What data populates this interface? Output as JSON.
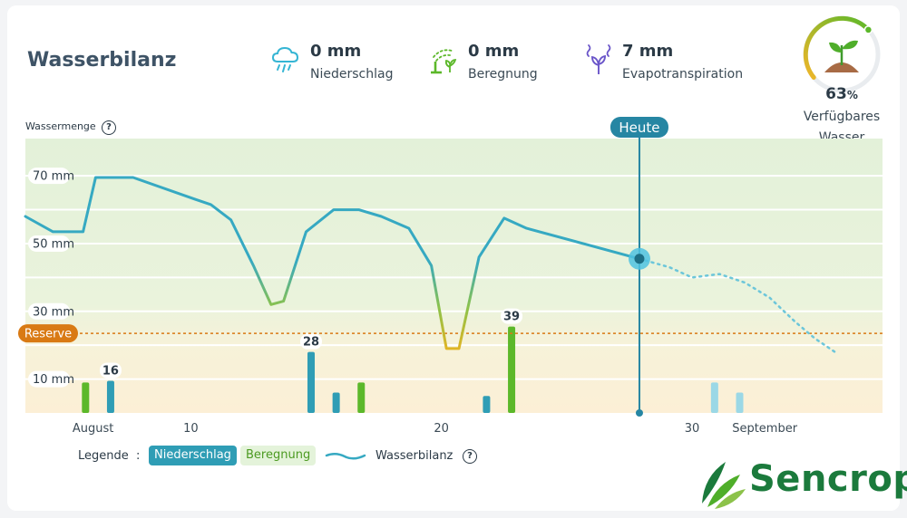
{
  "header": {
    "title": "Wasserbilanz",
    "stats": [
      {
        "icon": "rain-cloud-icon",
        "value": "0 mm",
        "label": "Niederschlag",
        "color": "#35b5d4"
      },
      {
        "icon": "sprinkler-icon",
        "value": "0 mm",
        "label": "Beregnung",
        "color": "#5cb82a"
      },
      {
        "icon": "evapotranspiration-icon",
        "value": "7 mm",
        "label": "Evapotranspiration",
        "color": "#6a55c9"
      }
    ]
  },
  "gauge": {
    "icon": "sprout-icon",
    "percent_value": 63,
    "percent_number": "63",
    "percent_sign": "%",
    "label": "Verfügbares Wasser"
  },
  "chart_data": {
    "type": "line",
    "y_title": "Wassermenge",
    "ylim": [
      0,
      81
    ],
    "y_ticks": [
      {
        "value": 70,
        "label": "70 mm"
      },
      {
        "value": 50,
        "label": "50 mm"
      },
      {
        "value": 30,
        "label": "30 mm"
      },
      {
        "value": 10,
        "label": "10 mm"
      }
    ],
    "gridlines": [
      10,
      20,
      30,
      40,
      50,
      60,
      70
    ],
    "x_day_range": [
      0,
      34.2
    ],
    "x_ticks": [
      {
        "day": 2.7,
        "label": "August"
      },
      {
        "day": 6.6,
        "label": "10"
      },
      {
        "day": 16.6,
        "label": "20"
      },
      {
        "day": 26.6,
        "label": "30"
      },
      {
        "day": 29.5,
        "label": "September"
      }
    ],
    "reserve": {
      "label": "Reserve",
      "value": 23.5
    },
    "today": {
      "label": "Heute",
      "day": 24.5,
      "value": 45.5
    },
    "series": [
      {
        "name": "Wasserbilanz",
        "style": "solid",
        "points": [
          [
            0,
            58
          ],
          [
            1.1,
            53.5
          ],
          [
            2.3,
            53.5
          ],
          [
            2.8,
            69.5
          ],
          [
            4.3,
            69.5
          ],
          [
            6.8,
            63
          ],
          [
            7.4,
            61.5
          ],
          [
            8.2,
            57
          ],
          [
            9.1,
            43.5
          ],
          [
            9.8,
            32
          ],
          [
            10.3,
            33
          ],
          [
            11.2,
            53.5
          ],
          [
            12.3,
            60
          ],
          [
            13.3,
            60
          ],
          [
            14.2,
            58
          ],
          [
            15.3,
            54.5
          ],
          [
            16.2,
            43.5
          ],
          [
            16.8,
            19
          ],
          [
            17.3,
            19
          ],
          [
            18.1,
            46
          ],
          [
            19.1,
            57.5
          ],
          [
            20,
            54.5
          ],
          [
            24.5,
            45.5
          ]
        ]
      },
      {
        "name": "Forecast",
        "style": "dotted",
        "points": [
          [
            24.5,
            45.5
          ],
          [
            25.7,
            43
          ],
          [
            26.6,
            40
          ],
          [
            27.7,
            41
          ],
          [
            28.7,
            38.5
          ],
          [
            29.7,
            34
          ],
          [
            30.7,
            27
          ],
          [
            31.5,
            22
          ],
          [
            32.4,
            17.5
          ]
        ]
      }
    ],
    "bars": [
      {
        "day": 2.4,
        "value": 9,
        "kind": "Beregnung"
      },
      {
        "day": 3.4,
        "value": 9.5,
        "kind": "Niederschlag",
        "label": "16"
      },
      {
        "day": 11.4,
        "value": 18,
        "kind": "Niederschlag",
        "label": "28"
      },
      {
        "day": 12.4,
        "value": 6,
        "kind": "Niederschlag"
      },
      {
        "day": 13.4,
        "value": 9,
        "kind": "Beregnung"
      },
      {
        "day": 18.4,
        "value": 5,
        "kind": "Niederschlag"
      },
      {
        "day": 19.4,
        "value": 25.5,
        "kind": "Beregnung",
        "label": "39"
      },
      {
        "day": 27.5,
        "value": 9,
        "kind": "Prognose"
      },
      {
        "day": 28.5,
        "value": 6,
        "kind": "Prognose"
      }
    ],
    "colors": {
      "line": "#36a9c2",
      "line_low": "#8cc24a",
      "line_min": "#e6b422",
      "rain": "#2f9db5",
      "irrigation": "#5cb82a",
      "forecast": "#9bd8e6",
      "reserve": "#d97a14",
      "today": "#2686a3",
      "zone_high": "#e3f1d9",
      "zone_low": "#fbf0d8"
    }
  },
  "legend": {
    "title": "Legende",
    "separator": ":",
    "items": [
      "Niederschlag",
      "Beregnung",
      "Wasserbilanz"
    ]
  },
  "brand": {
    "logo_text": "Sencrop",
    "color": "#1b7a3c"
  }
}
